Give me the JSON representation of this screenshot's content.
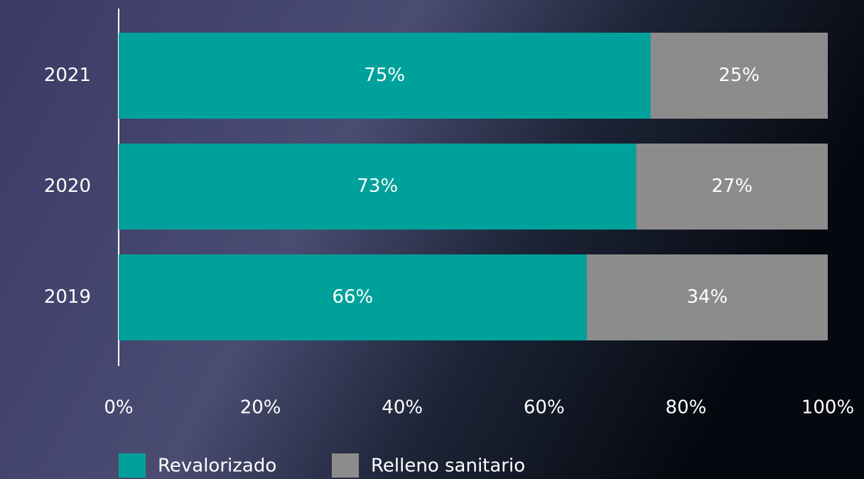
{
  "chart_data": {
    "type": "stacked-bar-horizontal",
    "categories": [
      "2021",
      "2020",
      "2019"
    ],
    "series": [
      {
        "name": "Revalorizado",
        "color": "#00a19a",
        "values": [
          75,
          73,
          66
        ],
        "value_labels": [
          "75%",
          "73%",
          "66%"
        ]
      },
      {
        "name": "Relleno sanitario",
        "color": "#8c8c8c",
        "values": [
          25,
          27,
          34
        ],
        "value_labels": [
          "25%",
          "27%",
          "34%"
        ]
      }
    ],
    "xlim": [
      0,
      100
    ],
    "xticks": [
      {
        "value": 0,
        "label": "0%"
      },
      {
        "value": 20,
        "label": "20%"
      },
      {
        "value": 40,
        "label": "40%"
      },
      {
        "value": 60,
        "label": "60%"
      },
      {
        "value": 80,
        "label": "80%"
      },
      {
        "value": 100,
        "label": "100%"
      }
    ],
    "grid": false,
    "legend": "bottom"
  }
}
